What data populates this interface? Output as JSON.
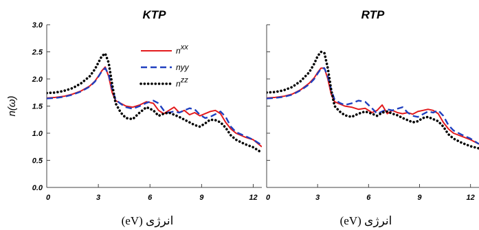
{
  "chart_data": [
    {
      "type": "line",
      "title": "KTP",
      "ylabel": "n(ω)",
      "xlabel": "(eV) انرژی",
      "xlim": [
        0,
        12.5
      ],
      "ylim": [
        0,
        3.0
      ],
      "xticks": [
        "0",
        "3",
        "6",
        "9",
        "12"
      ],
      "yticks": [
        "0.0",
        "0.5",
        "1.0",
        "1.5",
        "2.0",
        "2.5",
        "3.0"
      ],
      "legend": [
        {
          "base": "n",
          "sup": "xx",
          "color": "#e31a1c",
          "style": "solid"
        },
        {
          "base": "nyy",
          "sup": "",
          "color": "#1f3fbf",
          "style": "dashed"
        },
        {
          "base": "n",
          "sup": "zz",
          "color": "#000000",
          "style": "dotted"
        }
      ],
      "series": [
        {
          "color": "#e31a1c",
          "style": "solid",
          "x": [
            0,
            0.5,
            1.0,
            1.5,
            2.0,
            2.5,
            2.8,
            3.0,
            3.2,
            3.4,
            3.6,
            3.8,
            4.0,
            4.3,
            4.6,
            5.0,
            5.4,
            5.8,
            6.2,
            6.5,
            6.8,
            7.1,
            7.4,
            7.7,
            8.0,
            8.3,
            8.6,
            8.9,
            9.2,
            9.5,
            9.8,
            10.1,
            10.4,
            10.7,
            11.0,
            11.5,
            12.0,
            12.5
          ],
          "y": [
            1.65,
            1.66,
            1.68,
            1.72,
            1.78,
            1.87,
            1.96,
            2.05,
            2.15,
            2.22,
            2.05,
            1.75,
            1.6,
            1.55,
            1.5,
            1.48,
            1.52,
            1.58,
            1.55,
            1.42,
            1.36,
            1.42,
            1.48,
            1.38,
            1.42,
            1.34,
            1.38,
            1.32,
            1.36,
            1.4,
            1.42,
            1.36,
            1.2,
            1.08,
            1.0,
            0.93,
            0.88,
            0.75
          ]
        },
        {
          "color": "#1f3fbf",
          "style": "dashed",
          "x": [
            0,
            0.5,
            1.0,
            1.5,
            2.0,
            2.5,
            2.8,
            3.0,
            3.2,
            3.4,
            3.6,
            3.8,
            4.0,
            4.3,
            4.6,
            5.0,
            5.4,
            5.8,
            6.2,
            6.5,
            6.8,
            7.1,
            7.4,
            7.7,
            8.0,
            8.3,
            8.6,
            8.9,
            9.2,
            9.5,
            9.8,
            10.1,
            10.4,
            10.7,
            11.0,
            11.5,
            12.0,
            12.5
          ],
          "y": [
            1.64,
            1.65,
            1.67,
            1.71,
            1.77,
            1.86,
            1.95,
            2.04,
            2.14,
            2.2,
            2.08,
            1.82,
            1.62,
            1.54,
            1.48,
            1.45,
            1.5,
            1.56,
            1.6,
            1.55,
            1.42,
            1.38,
            1.4,
            1.38,
            1.42,
            1.46,
            1.44,
            1.34,
            1.28,
            1.3,
            1.35,
            1.4,
            1.3,
            1.12,
            1.02,
            0.95,
            0.88,
            0.78
          ]
        },
        {
          "color": "#000000",
          "style": "dotted",
          "x": [
            0,
            0.5,
            1.0,
            1.5,
            2.0,
            2.5,
            2.8,
            3.0,
            3.2,
            3.4,
            3.6,
            3.8,
            4.0,
            4.3,
            4.6,
            5.0,
            5.4,
            5.8,
            6.2,
            6.5,
            6.8,
            7.1,
            7.4,
            7.7,
            8.0,
            8.3,
            8.6,
            8.9,
            9.2,
            9.5,
            9.8,
            10.1,
            10.4,
            10.7,
            11.0,
            11.5,
            12.0,
            12.5
          ],
          "y": [
            1.74,
            1.75,
            1.78,
            1.83,
            1.92,
            2.05,
            2.18,
            2.3,
            2.42,
            2.47,
            2.3,
            1.9,
            1.55,
            1.38,
            1.28,
            1.26,
            1.38,
            1.48,
            1.42,
            1.32,
            1.36,
            1.38,
            1.34,
            1.3,
            1.25,
            1.2,
            1.15,
            1.12,
            1.18,
            1.25,
            1.24,
            1.2,
            1.1,
            0.96,
            0.88,
            0.8,
            0.74,
            0.64
          ]
        }
      ]
    },
    {
      "type": "line",
      "title": "RTP",
      "ylabel": "",
      "xlabel": "(eV) انرژی",
      "xlim": [
        0,
        12.5
      ],
      "ylim": [
        0,
        3.0
      ],
      "xticks": [
        "0",
        "3",
        "6",
        "9",
        "12"
      ],
      "yticks": [],
      "legend": [],
      "series": [
        {
          "color": "#e31a1c",
          "style": "solid",
          "x": [
            0,
            0.5,
            1.0,
            1.5,
            2.0,
            2.5,
            2.8,
            3.0,
            3.2,
            3.4,
            3.6,
            3.8,
            4.0,
            4.3,
            4.6,
            5.0,
            5.4,
            5.8,
            6.2,
            6.5,
            6.8,
            7.1,
            7.4,
            7.7,
            8.0,
            8.3,
            8.6,
            8.9,
            9.2,
            9.5,
            9.8,
            10.1,
            10.4,
            10.7,
            11.0,
            11.5,
            12.0,
            12.5
          ],
          "y": [
            1.65,
            1.66,
            1.68,
            1.72,
            1.8,
            1.92,
            2.02,
            2.12,
            2.2,
            2.2,
            2.0,
            1.72,
            1.58,
            1.54,
            1.5,
            1.48,
            1.44,
            1.46,
            1.38,
            1.42,
            1.52,
            1.36,
            1.42,
            1.38,
            1.36,
            1.38,
            1.35,
            1.4,
            1.42,
            1.44,
            1.42,
            1.36,
            1.2,
            1.08,
            1.0,
            0.94,
            0.88,
            0.8
          ]
        },
        {
          "color": "#1f3fbf",
          "style": "dashed",
          "x": [
            0,
            0.5,
            1.0,
            1.5,
            2.0,
            2.5,
            2.8,
            3.0,
            3.2,
            3.4,
            3.6,
            3.8,
            4.0,
            4.3,
            4.6,
            5.0,
            5.4,
            5.8,
            6.2,
            6.5,
            6.8,
            7.1,
            7.4,
            7.7,
            8.0,
            8.3,
            8.6,
            8.9,
            9.2,
            9.5,
            9.8,
            10.1,
            10.4,
            10.7,
            11.0,
            11.5,
            12.0,
            12.5
          ],
          "y": [
            1.64,
            1.65,
            1.67,
            1.71,
            1.79,
            1.9,
            2.0,
            2.1,
            2.19,
            2.2,
            2.05,
            1.8,
            1.62,
            1.56,
            1.52,
            1.55,
            1.6,
            1.58,
            1.46,
            1.36,
            1.4,
            1.44,
            1.42,
            1.45,
            1.48,
            1.38,
            1.32,
            1.3,
            1.35,
            1.4,
            1.38,
            1.42,
            1.32,
            1.15,
            1.05,
            0.97,
            0.9,
            0.8
          ]
        },
        {
          "color": "#000000",
          "style": "dotted",
          "x": [
            0,
            0.5,
            1.0,
            1.5,
            2.0,
            2.5,
            2.8,
            3.0,
            3.2,
            3.4,
            3.6,
            3.8,
            4.0,
            4.3,
            4.6,
            5.0,
            5.4,
            5.8,
            6.2,
            6.5,
            6.8,
            7.1,
            7.4,
            7.7,
            8.0,
            8.3,
            8.6,
            8.9,
            9.2,
            9.5,
            9.8,
            10.1,
            10.4,
            10.7,
            11.0,
            11.5,
            12.0,
            12.5
          ],
          "y": [
            1.75,
            1.76,
            1.79,
            1.85,
            1.96,
            2.12,
            2.28,
            2.42,
            2.5,
            2.48,
            2.2,
            1.8,
            1.5,
            1.4,
            1.33,
            1.3,
            1.36,
            1.4,
            1.36,
            1.32,
            1.38,
            1.4,
            1.36,
            1.33,
            1.28,
            1.24,
            1.2,
            1.22,
            1.28,
            1.3,
            1.26,
            1.22,
            1.12,
            0.98,
            0.9,
            0.82,
            0.76,
            0.72
          ]
        }
      ]
    }
  ]
}
